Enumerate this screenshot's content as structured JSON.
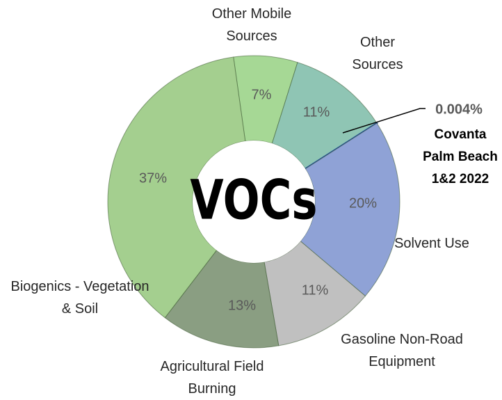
{
  "chart_data": {
    "type": "donut",
    "title": "VOCs",
    "categories": [
      "Other Mobile Sources",
      "Other Sources",
      "Covanta Palm Beach 1&2 2022",
      "Solvent Use",
      "Gasoline Non-Road Equipment",
      "Agricultural Field Burning",
      "Biogenics - Vegetation & Soil"
    ],
    "values": [
      7,
      11,
      0.004,
      20,
      11,
      13,
      37
    ],
    "value_labels": [
      "7%",
      "11%",
      "0.004%",
      "20%",
      "11%",
      "13%",
      "37%"
    ],
    "colors": [
      "#a6d895",
      "#8fc5b4",
      "#1f4e9c",
      "#8fa2d6",
      "#c0c0c0",
      "#8a9e82",
      "#a4cf8f"
    ]
  }
}
